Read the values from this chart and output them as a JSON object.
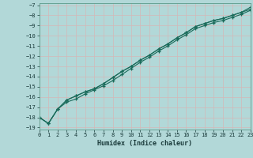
{
  "xlabel": "Humidex (Indice chaleur)",
  "xlim": [
    0,
    23
  ],
  "ylim": [
    -19.2,
    -6.8
  ],
  "xticks": [
    0,
    1,
    2,
    3,
    4,
    5,
    6,
    7,
    8,
    9,
    10,
    11,
    12,
    13,
    14,
    15,
    16,
    17,
    18,
    19,
    20,
    21,
    22,
    23
  ],
  "yticks": [
    -19,
    -18,
    -17,
    -16,
    -15,
    -14,
    -13,
    -12,
    -11,
    -10,
    -9,
    -8,
    -7
  ],
  "bg_color": "#b2d8d8",
  "grid_color": "#c8e8e0",
  "line_color": "#1a6b5a",
  "x_data": [
    0,
    1,
    2,
    3,
    4,
    5,
    6,
    7,
    8,
    9,
    10,
    11,
    12,
    13,
    14,
    15,
    16,
    17,
    18,
    19,
    20,
    21,
    22,
    23
  ],
  "line1": [
    -18.0,
    -18.6,
    -17.2,
    -16.3,
    -15.9,
    -15.5,
    -15.2,
    -14.7,
    -14.1,
    -13.5,
    -13.0,
    -12.4,
    -11.9,
    -11.3,
    -10.8,
    -10.2,
    -9.7,
    -9.1,
    -8.8,
    -8.5,
    -8.3,
    -8.0,
    -7.7,
    -7.4
  ],
  "line2": [
    -18.0,
    -18.6,
    -17.2,
    -16.3,
    -15.9,
    -15.5,
    -15.2,
    -14.7,
    -14.1,
    -13.5,
    -13.0,
    -12.4,
    -11.9,
    -11.3,
    -10.8,
    -10.2,
    -9.7,
    -9.1,
    -8.8,
    -8.5,
    -8.3,
    -8.0,
    -7.7,
    -7.2
  ],
  "line3": [
    -18.0,
    -18.6,
    -17.2,
    -16.5,
    -16.2,
    -15.7,
    -15.3,
    -14.9,
    -14.4,
    -13.8,
    -13.2,
    -12.6,
    -12.1,
    -11.5,
    -11.0,
    -10.4,
    -9.9,
    -9.3,
    -9.0,
    -8.7,
    -8.5,
    -8.2,
    -7.9,
    -7.5
  ]
}
